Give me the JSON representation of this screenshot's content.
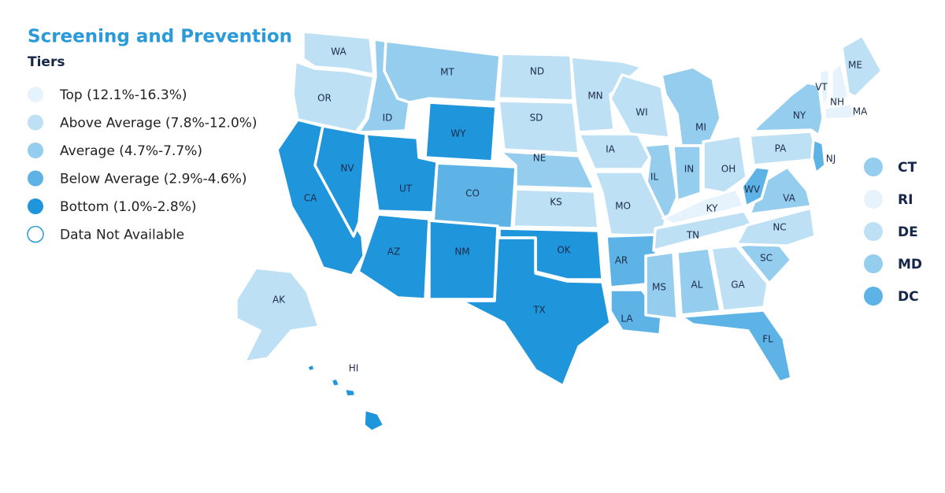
{
  "title": "Screening and Prevention",
  "legend_title": "Tiers",
  "tiers": [
    {
      "label": "Top (12.1%-16.3%)",
      "color": "#e6f3fc"
    },
    {
      "label": "Above Average (7.8%-12.0%)",
      "color": "#bde0f4"
    },
    {
      "label": "Average (4.7%-7.7%)",
      "color": "#95cdee"
    },
    {
      "label": "Below Average (2.9%-4.6%)",
      "color": "#5db3e6"
    },
    {
      "label": "Bottom (1.0%-2.8%)",
      "color": "#1f96dc"
    },
    {
      "label": "Data Not Available",
      "color": "#ffffff"
    }
  ],
  "states": [
    {
      "abbr": "WA",
      "tier": 1
    },
    {
      "abbr": "OR",
      "tier": 1
    },
    {
      "abbr": "CA",
      "tier": 4
    },
    {
      "abbr": "NV",
      "tier": 4
    },
    {
      "abbr": "ID",
      "tier": 2
    },
    {
      "abbr": "MT",
      "tier": 2
    },
    {
      "abbr": "WY",
      "tier": 4
    },
    {
      "abbr": "UT",
      "tier": 4
    },
    {
      "abbr": "CO",
      "tier": 3
    },
    {
      "abbr": "AZ",
      "tier": 4
    },
    {
      "abbr": "NM",
      "tier": 4
    },
    {
      "abbr": "ND",
      "tier": 1
    },
    {
      "abbr": "SD",
      "tier": 1
    },
    {
      "abbr": "NE",
      "tier": 2
    },
    {
      "abbr": "KS",
      "tier": 1
    },
    {
      "abbr": "OK",
      "tier": 4
    },
    {
      "abbr": "TX",
      "tier": 4
    },
    {
      "abbr": "MN",
      "tier": 1
    },
    {
      "abbr": "IA",
      "tier": 1
    },
    {
      "abbr": "WI",
      "tier": 1
    },
    {
      "abbr": "IL",
      "tier": 2
    },
    {
      "abbr": "MI",
      "tier": 2
    },
    {
      "abbr": "IN",
      "tier": 2
    },
    {
      "abbr": "OH",
      "tier": 1
    },
    {
      "abbr": "MO",
      "tier": 1
    },
    {
      "abbr": "AR",
      "tier": 3
    },
    {
      "abbr": "LA",
      "tier": 3
    },
    {
      "abbr": "KY",
      "tier": 0
    },
    {
      "abbr": "TN",
      "tier": 1
    },
    {
      "abbr": "MS",
      "tier": 2
    },
    {
      "abbr": "AL",
      "tier": 2
    },
    {
      "abbr": "GA",
      "tier": 1
    },
    {
      "abbr": "FL",
      "tier": 3
    },
    {
      "abbr": "SC",
      "tier": 2
    },
    {
      "abbr": "NC",
      "tier": 1
    },
    {
      "abbr": "VA",
      "tier": 2
    },
    {
      "abbr": "WV",
      "tier": 3
    },
    {
      "abbr": "PA",
      "tier": 1
    },
    {
      "abbr": "NY",
      "tier": 2
    },
    {
      "abbr": "NJ",
      "tier": 3
    },
    {
      "abbr": "VT",
      "tier": 0
    },
    {
      "abbr": "NH",
      "tier": 0
    },
    {
      "abbr": "ME",
      "tier": 1
    },
    {
      "abbr": "MA",
      "tier": 0
    },
    {
      "abbr": "AK",
      "tier": 1
    },
    {
      "abbr": "HI",
      "tier": 4
    }
  ],
  "small_states": [
    {
      "abbr": "CT",
      "tier": 2
    },
    {
      "abbr": "RI",
      "tier": 0
    },
    {
      "abbr": "DE",
      "tier": 1
    },
    {
      "abbr": "MD",
      "tier": 2
    },
    {
      "abbr": "DC",
      "tier": 3
    }
  ]
}
